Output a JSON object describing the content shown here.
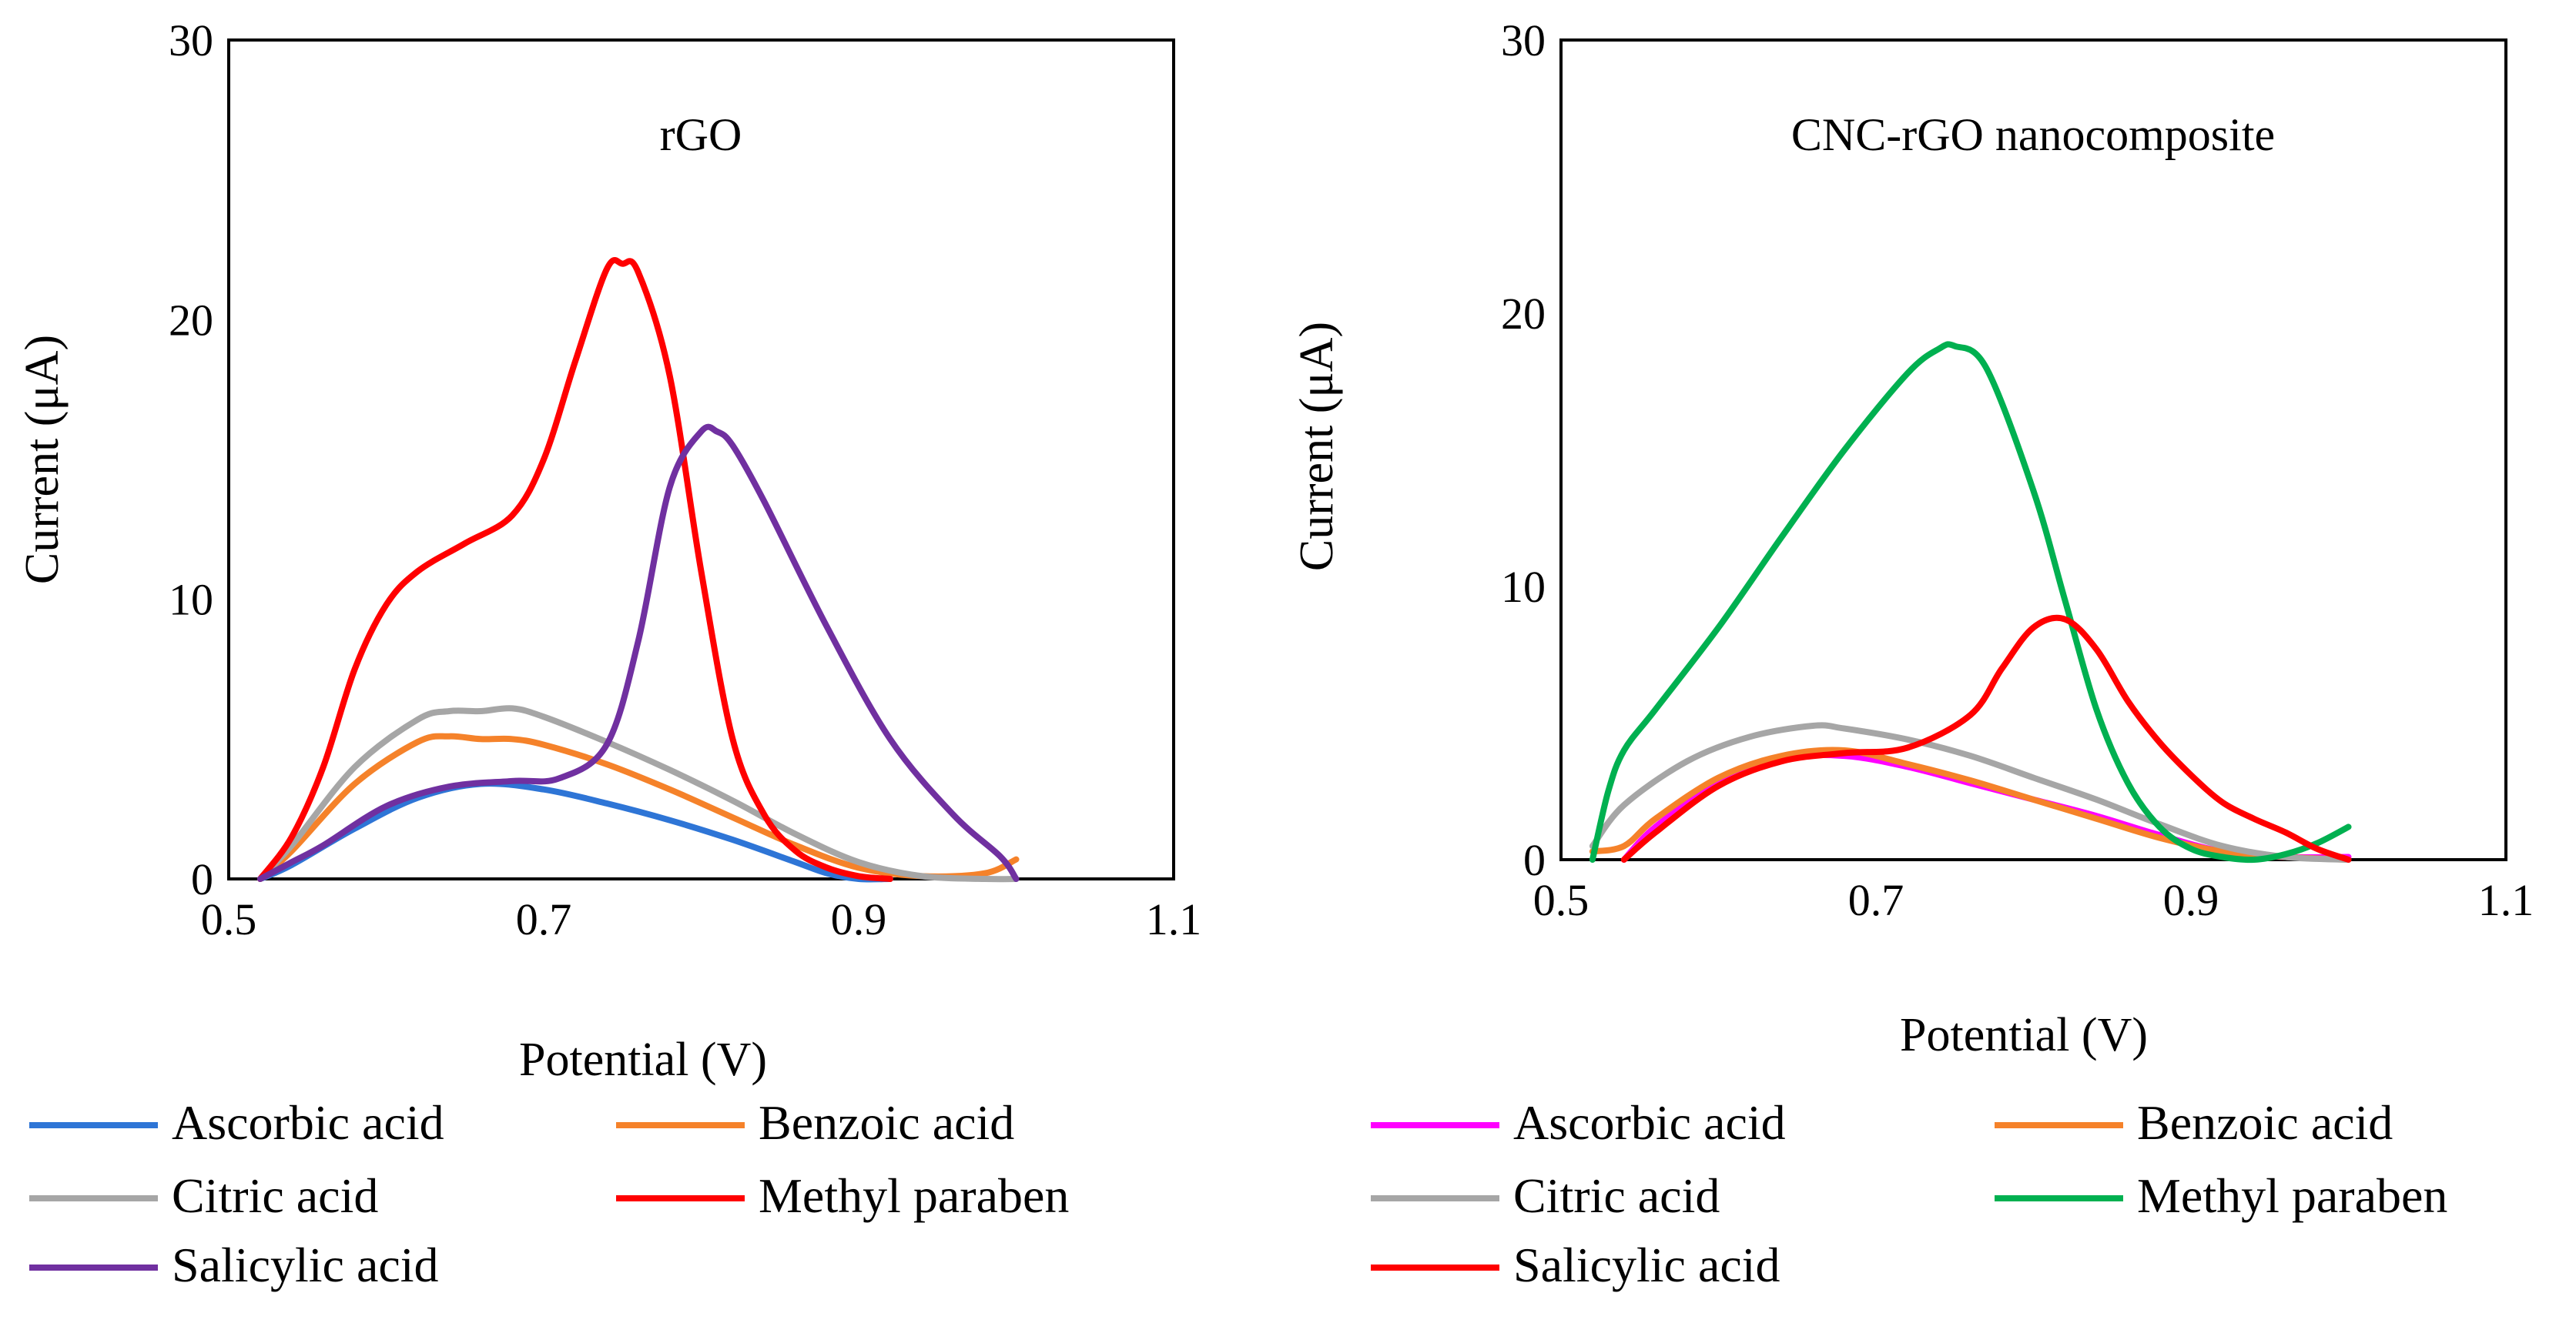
{
  "chart_data": [
    {
      "type": "line",
      "title": "rGO",
      "xlabel": "Potential (V)",
      "ylabel": "Current (μA)",
      "xlim": [
        0.5,
        1.1
      ],
      "ylim": [
        0,
        30
      ],
      "xticks": [
        "0.5",
        "0.7",
        "0.9",
        "1.1"
      ],
      "yticks": [
        "0",
        "10",
        "20",
        "30"
      ],
      "grid": false,
      "legend_position": "bottom",
      "series": [
        {
          "name": "Ascorbic acid",
          "color": "#2e75d6",
          "x": [
            0.52,
            0.54,
            0.58,
            0.62,
            0.66,
            0.7,
            0.74,
            0.78,
            0.82,
            0.86,
            0.88,
            0.9,
            0.92
          ],
          "y": [
            0.0,
            0.5,
            1.8,
            2.9,
            3.4,
            3.2,
            2.7,
            2.1,
            1.4,
            0.6,
            0.2,
            0.0,
            0.0
          ]
        },
        {
          "name": "Benzoic acid",
          "color": "#f5822a",
          "x": [
            0.52,
            0.54,
            0.58,
            0.62,
            0.64,
            0.66,
            0.68,
            0.7,
            0.74,
            0.78,
            0.82,
            0.86,
            0.9,
            0.94,
            0.98,
            1.0
          ],
          "y": [
            0.0,
            1.0,
            3.4,
            4.9,
            5.1,
            5.0,
            5.0,
            4.8,
            4.1,
            3.2,
            2.2,
            1.2,
            0.4,
            0.1,
            0.2,
            0.7
          ]
        },
        {
          "name": "Citric acid",
          "color": "#a6a6a6",
          "x": [
            0.52,
            0.54,
            0.58,
            0.62,
            0.64,
            0.66,
            0.68,
            0.7,
            0.74,
            0.78,
            0.82,
            0.86,
            0.9,
            0.94,
            0.98,
            1.0
          ],
          "y": [
            0.0,
            1.2,
            4.0,
            5.7,
            6.0,
            6.0,
            6.1,
            5.8,
            4.9,
            3.9,
            2.8,
            1.6,
            0.6,
            0.1,
            0.0,
            0.0
          ]
        },
        {
          "name": "Methyl paraben",
          "color": "#ff0000",
          "x": [
            0.52,
            0.54,
            0.56,
            0.58,
            0.6,
            0.62,
            0.65,
            0.68,
            0.7,
            0.72,
            0.74,
            0.75,
            0.76,
            0.78,
            0.8,
            0.82,
            0.84,
            0.86,
            0.88,
            0.9,
            0.92
          ],
          "y": [
            0.0,
            1.5,
            4.0,
            7.5,
            9.8,
            11.0,
            12.0,
            13.0,
            15.0,
            18.5,
            21.8,
            22.0,
            21.7,
            18.0,
            11.0,
            5.0,
            2.3,
            1.0,
            0.4,
            0.1,
            0.0
          ]
        },
        {
          "name": "Salicylic acid",
          "color": "#7030a0",
          "x": [
            0.52,
            0.54,
            0.56,
            0.6,
            0.64,
            0.68,
            0.71,
            0.74,
            0.76,
            0.78,
            0.8,
            0.81,
            0.82,
            0.84,
            0.88,
            0.92,
            0.96,
            0.99,
            1.0
          ],
          "y": [
            0.0,
            0.6,
            1.2,
            2.6,
            3.3,
            3.5,
            3.6,
            4.8,
            8.5,
            14.0,
            16.0,
            16.0,
            15.5,
            13.5,
            9.0,
            5.0,
            2.3,
            0.8,
            0.0
          ]
        }
      ]
    },
    {
      "type": "line",
      "title": "CNC-rGO nanocomposite",
      "xlabel": "Potential (V)",
      "ylabel": "Current (μA)",
      "xlim": [
        0.5,
        1.1
      ],
      "ylim": [
        0,
        30
      ],
      "xticks": [
        "0.5",
        "0.7",
        "0.9",
        "1.1"
      ],
      "yticks": [
        "0",
        "10",
        "20",
        "30"
      ],
      "grid": false,
      "legend_position": "bottom",
      "series": [
        {
          "name": "Ascorbic acid",
          "color": "#ff00ff",
          "x": [
            0.54,
            0.56,
            0.6,
            0.64,
            0.68,
            0.72,
            0.76,
            0.8,
            0.84,
            0.88,
            0.92,
            0.96,
            1.0
          ],
          "y": [
            0.0,
            1.2,
            2.8,
            3.7,
            3.8,
            3.4,
            2.8,
            2.2,
            1.6,
            0.9,
            0.3,
            0.1,
            0.1
          ]
        },
        {
          "name": "Benzoic acid",
          "color": "#f5822a",
          "x": [
            0.52,
            0.54,
            0.56,
            0.6,
            0.64,
            0.68,
            0.72,
            0.76,
            0.8,
            0.84,
            0.88,
            0.92,
            0.96,
            1.0
          ],
          "y": [
            0.3,
            0.5,
            1.5,
            3.0,
            3.8,
            4.0,
            3.5,
            2.9,
            2.2,
            1.5,
            0.8,
            0.3,
            0.1,
            0.0
          ]
        },
        {
          "name": "Citric acid",
          "color": "#a6a6a6",
          "x": [
            0.52,
            0.54,
            0.58,
            0.62,
            0.66,
            0.68,
            0.72,
            0.76,
            0.8,
            0.84,
            0.88,
            0.92,
            0.96,
            1.0
          ],
          "y": [
            0.5,
            2.0,
            3.6,
            4.5,
            4.9,
            4.8,
            4.4,
            3.8,
            3.0,
            2.2,
            1.3,
            0.5,
            0.1,
            0.0
          ]
        },
        {
          "name": "Methyl paraben",
          "color": "#00b050",
          "x": [
            0.52,
            0.53,
            0.54,
            0.56,
            0.6,
            0.64,
            0.68,
            0.72,
            0.74,
            0.75,
            0.77,
            0.8,
            0.82,
            0.84,
            0.86,
            0.88,
            0.9,
            0.92,
            0.94,
            0.96,
            0.98,
            1.0
          ],
          "y": [
            0.0,
            2.5,
            4.0,
            5.5,
            8.5,
            11.8,
            15.0,
            17.8,
            18.7,
            18.8,
            18.0,
            13.5,
            9.5,
            5.5,
            2.8,
            1.2,
            0.4,
            0.1,
            0.0,
            0.2,
            0.6,
            1.2
          ]
        },
        {
          "name": "Salicylic acid",
          "color": "#ff0000",
          "x": [
            0.54,
            0.56,
            0.6,
            0.64,
            0.68,
            0.72,
            0.76,
            0.78,
            0.8,
            0.82,
            0.84,
            0.86,
            0.88,
            0.9,
            0.92,
            0.94,
            0.96,
            0.98,
            1.0
          ],
          "y": [
            0.0,
            1.0,
            2.7,
            3.6,
            3.9,
            4.1,
            5.3,
            7.0,
            8.5,
            8.8,
            7.7,
            5.8,
            4.3,
            3.1,
            2.1,
            1.5,
            1.0,
            0.4,
            0.0
          ]
        }
      ]
    }
  ]
}
